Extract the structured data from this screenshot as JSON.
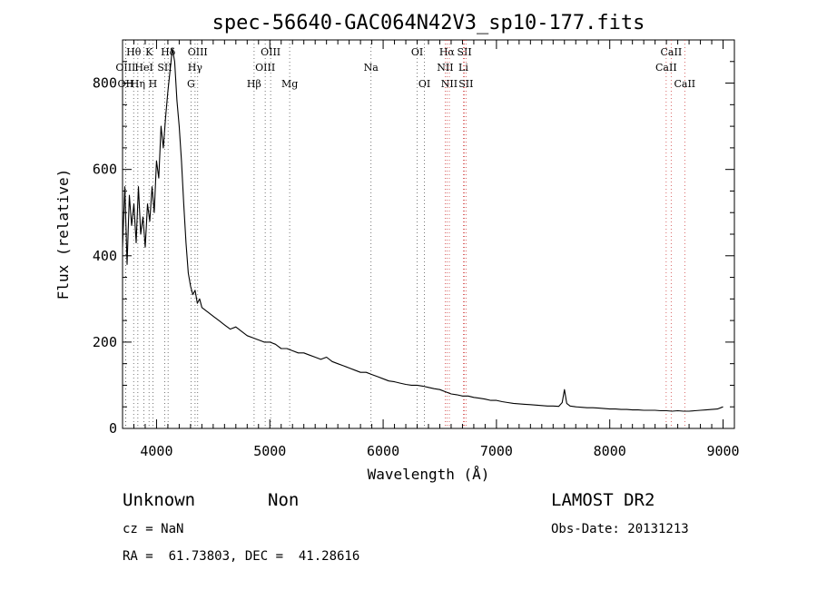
{
  "chart_data": {
    "type": "line",
    "title": "spec-56640-GAC064N42V3_sp10-177.fits",
    "xlabel": "Wavelength (Å)",
    "ylabel": "Flux (relative)",
    "xlim": [
      3700,
      9100
    ],
    "ylim": [
      0,
      900
    ],
    "xticks": [
      4000,
      5000,
      6000,
      7000,
      8000,
      9000
    ],
    "yticks": [
      0,
      200,
      400,
      600,
      800
    ],
    "grid": false,
    "series": [
      {
        "x": [
          3700,
          3720,
          3740,
          3760,
          3780,
          3800,
          3820,
          3840,
          3860,
          3880,
          3900,
          3920,
          3940,
          3960,
          3980,
          4000,
          4020,
          4040,
          4060,
          4080,
          4100,
          4120,
          4140,
          4160,
          4180,
          4200,
          4220,
          4240,
          4260,
          4280,
          4300,
          4320,
          4340,
          4360,
          4380,
          4400,
          4450,
          4500,
          4550,
          4600,
          4650,
          4700,
          4750,
          4800,
          4850,
          4900,
          4950,
          5000,
          5050,
          5100,
          5150,
          5200,
          5250,
          5300,
          5350,
          5400,
          5450,
          5500,
          5550,
          5600,
          5650,
          5700,
          5750,
          5800,
          5850,
          5900,
          5950,
          6000,
          6050,
          6100,
          6150,
          6200,
          6250,
          6300,
          6350,
          6400,
          6450,
          6500,
          6550,
          6600,
          6650,
          6700,
          6750,
          6800,
          6850,
          6900,
          6950,
          7000,
          7050,
          7100,
          7150,
          7200,
          7250,
          7300,
          7350,
          7400,
          7450,
          7500,
          7550,
          7580,
          7600,
          7620,
          7650,
          7700,
          7750,
          7800,
          7850,
          7900,
          7950,
          8000,
          8050,
          8100,
          8150,
          8200,
          8250,
          8300,
          8350,
          8400,
          8450,
          8500,
          8550,
          8600,
          8650,
          8700,
          8750,
          8800,
          8850,
          8900,
          8950,
          9000
        ],
        "y": [
          420,
          560,
          380,
          540,
          470,
          520,
          430,
          560,
          450,
          490,
          420,
          520,
          480,
          560,
          500,
          620,
          580,
          700,
          650,
          720,
          780,
          830,
          880,
          850,
          760,
          700,
          620,
          520,
          430,
          360,
          330,
          310,
          320,
          290,
          300,
          280,
          270,
          260,
          250,
          240,
          230,
          235,
          225,
          215,
          210,
          205,
          200,
          200,
          195,
          185,
          185,
          180,
          175,
          175,
          170,
          165,
          160,
          165,
          155,
          150,
          145,
          140,
          135,
          130,
          130,
          125,
          120,
          115,
          110,
          108,
          105,
          102,
          100,
          100,
          98,
          95,
          92,
          90,
          85,
          80,
          78,
          75,
          75,
          72,
          70,
          68,
          65,
          65,
          62,
          60,
          58,
          57,
          56,
          55,
          54,
          53,
          52,
          52,
          51,
          60,
          90,
          58,
          52,
          50,
          49,
          48,
          48,
          47,
          46,
          45,
          45,
          44,
          44,
          43,
          43,
          42,
          42,
          42,
          41,
          41,
          40,
          41,
          40,
          40,
          41,
          42,
          43,
          44,
          45,
          50
        ]
      }
    ],
    "lines": [
      {
        "label": "Hθ",
        "x": 3798,
        "row": 0
      },
      {
        "label": "K",
        "x": 3934,
        "row": 0
      },
      {
        "label": "Hδ",
        "x": 4102,
        "row": 0
      },
      {
        "label": "OIII",
        "x": 4363,
        "row": 0
      },
      {
        "label": "OIII",
        "x": 5007,
        "row": 0
      },
      {
        "label": "OI",
        "x": 6300,
        "row": 0
      },
      {
        "label": "Hα",
        "x": 6563,
        "row": 0
      },
      {
        "label": "SII",
        "x": 6717,
        "row": 0
      },
      {
        "label": "CaII",
        "x": 8542,
        "row": 0
      },
      {
        "label": "OIII",
        "x": 3727,
        "row": 1
      },
      {
        "label": "HeI",
        "x": 3889,
        "row": 1
      },
      {
        "label": "SII",
        "x": 4072,
        "row": 1
      },
      {
        "label": "Hγ",
        "x": 4340,
        "row": 1
      },
      {
        "label": "OIII",
        "x": 4959,
        "row": 1
      },
      {
        "label": "Na",
        "x": 5893,
        "row": 1
      },
      {
        "label": "NII",
        "x": 6548,
        "row": 1
      },
      {
        "label": "Li",
        "x": 6708,
        "row": 1
      },
      {
        "label": "CaII",
        "x": 8498,
        "row": 1
      },
      {
        "label": "OII",
        "x": 3727,
        "row": 2
      },
      {
        "label": "Hη",
        "x": 3835,
        "row": 2
      },
      {
        "label": "H",
        "x": 3968,
        "row": 2
      },
      {
        "label": "G",
        "x": 4304,
        "row": 2
      },
      {
        "label": "Hβ",
        "x": 4861,
        "row": 2
      },
      {
        "label": "Mg",
        "x": 5175,
        "row": 2
      },
      {
        "label": "OI",
        "x": 6364,
        "row": 2
      },
      {
        "label": "NII",
        "x": 6584,
        "row": 2
      },
      {
        "label": "SII",
        "x": 6731,
        "row": 2
      },
      {
        "label": "CaII",
        "x": 8662,
        "row": 2
      }
    ]
  },
  "footer": {
    "class_label": "Unknown",
    "subclass_label": "Non",
    "survey": "LAMOST DR2",
    "cz": "cz = NaN",
    "obs_date": "Obs-Date: 20131213",
    "coords": "RA =  61.73803, DEC =  41.28616"
  }
}
